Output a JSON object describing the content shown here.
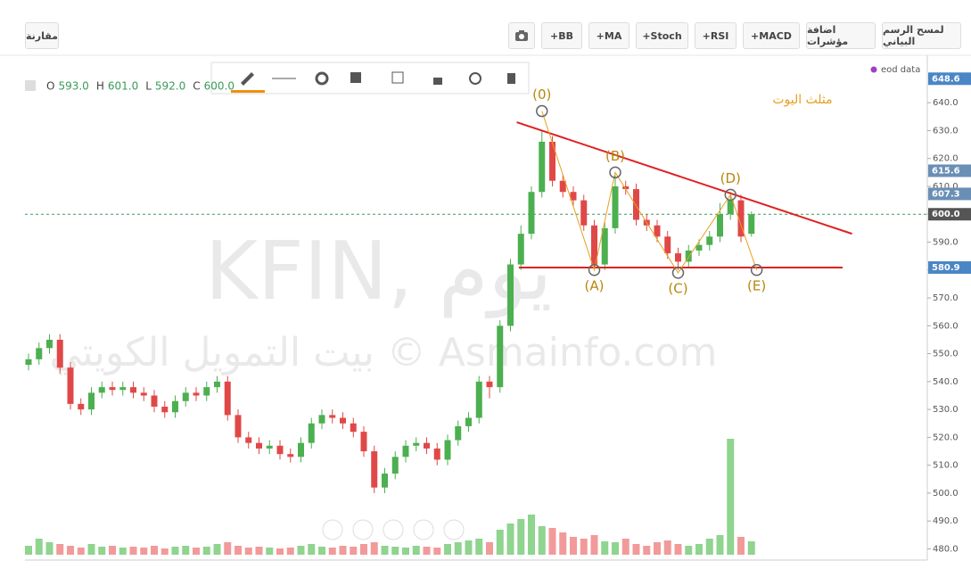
{
  "toolbar": {
    "compare": "مقارنة",
    "buttons": [
      "+BB",
      "+MA",
      "+Stoch",
      "+RSI",
      "+MACD",
      "اضافة مؤشرات",
      "لمسح الرسم البياني"
    ]
  },
  "legend_ohlc": [
    {
      "key": "O",
      "value": "593.0"
    },
    {
      "key": "H",
      "value": "601.0"
    },
    {
      "key": "L",
      "value": "592.0"
    },
    {
      "key": "C",
      "value": "600.0"
    }
  ],
  "watermark": [
    "KFIN, يوم",
    "بيت التمويل الكويتي © Asmainfo.com"
  ],
  "source": "eod data",
  "chart_data": {
    "type": "candlestick",
    "title": "مثلث اليوت",
    "open": [
      546,
      548,
      552,
      555,
      545,
      532,
      530,
      536,
      538,
      537,
      538,
      536,
      535,
      531,
      529,
      533,
      536,
      535,
      538,
      540,
      528,
      520,
      518,
      516,
      517,
      514,
      513,
      518,
      525,
      528,
      527,
      525,
      522,
      515,
      502,
      507,
      513,
      517,
      518,
      516,
      512,
      519,
      524,
      527,
      540,
      538,
      560,
      582,
      593,
      608,
      626,
      612,
      608,
      605,
      596,
      582,
      595,
      610,
      609,
      598,
      596,
      592,
      586,
      583,
      587,
      589,
      592,
      600,
      605,
      593
    ],
    "high": [
      550,
      554,
      557,
      557,
      547,
      534,
      538,
      540,
      540,
      540,
      540,
      538,
      537,
      533,
      535,
      538,
      538,
      540,
      542,
      542,
      530,
      522,
      520,
      519,
      519,
      516,
      520,
      527,
      530,
      530,
      529,
      527,
      524,
      517,
      509,
      515,
      519,
      520,
      520,
      518,
      521,
      526,
      529,
      542,
      542,
      562,
      584,
      596,
      610,
      630,
      628,
      614,
      610,
      607,
      598,
      597,
      614,
      612,
      611,
      600,
      598,
      594,
      588,
      589,
      591,
      594,
      604,
      608,
      607,
      601
    ],
    "low": [
      544,
      546,
      550,
      543,
      530,
      528,
      528,
      534,
      535,
      535,
      534,
      533,
      529,
      527,
      527,
      531,
      533,
      533,
      536,
      526,
      518,
      516,
      514,
      514,
      512,
      511,
      511,
      516,
      523,
      525,
      523,
      520,
      513,
      500,
      500,
      505,
      511,
      515,
      514,
      510,
      510,
      517,
      522,
      525,
      534,
      536,
      558,
      580,
      591,
      606,
      610,
      606,
      603,
      594,
      580,
      580,
      593,
      607,
      596,
      594,
      590,
      584,
      580,
      581,
      585,
      587,
      590,
      598,
      590,
      592
    ],
    "close": [
      548,
      552,
      555,
      545,
      532,
      530,
      536,
      538,
      537,
      538,
      536,
      535,
      531,
      529,
      533,
      536,
      535,
      538,
      540,
      528,
      520,
      518,
      516,
      517,
      514,
      513,
      518,
      525,
      528,
      527,
      525,
      522,
      515,
      502,
      507,
      513,
      517,
      518,
      516,
      512,
      519,
      524,
      527,
      540,
      538,
      560,
      582,
      593,
      608,
      626,
      612,
      608,
      605,
      596,
      582,
      595,
      610,
      609,
      598,
      596,
      592,
      586,
      583,
      587,
      589,
      592,
      600,
      605,
      592,
      600
    ],
    "volume": [
      10,
      18,
      14,
      12,
      10,
      8,
      12,
      9,
      10,
      8,
      9,
      8,
      10,
      7,
      9,
      10,
      8,
      9,
      12,
      14,
      10,
      8,
      9,
      8,
      7,
      8,
      10,
      12,
      9,
      8,
      10,
      9,
      12,
      14,
      10,
      9,
      8,
      10,
      9,
      8,
      12,
      14,
      16,
      18,
      14,
      28,
      35,
      40,
      45,
      32,
      30,
      25,
      20,
      18,
      22,
      15,
      14,
      18,
      12,
      10,
      14,
      16,
      12,
      10,
      12,
      18,
      22,
      130,
      20,
      15
    ],
    "up_color": "#4caf50",
    "down_color": "#e04848",
    "volume_up_color": "#8fd48f",
    "volume_down_color": "#f29a9a",
    "ylim": [
      476,
      657
    ],
    "yticks": [
      {
        "value": 480,
        "label": "480.0"
      },
      {
        "value": 490,
        "label": "490.0"
      },
      {
        "value": 500,
        "label": "500.0"
      },
      {
        "value": 510,
        "label": "510.0"
      },
      {
        "value": 520,
        "label": "520.0"
      },
      {
        "value": 530,
        "label": "530.0"
      },
      {
        "value": 540,
        "label": "540.0"
      },
      {
        "value": 550,
        "label": "550.0"
      },
      {
        "value": 560,
        "label": "560.0"
      },
      {
        "value": 570,
        "label": "570.0"
      },
      {
        "value": 580,
        "label": "580.0"
      },
      {
        "value": 590,
        "label": "590.0"
      },
      {
        "value": 600,
        "label": "600.0"
      },
      {
        "value": 610,
        "label": "610.0"
      },
      {
        "value": 620,
        "label": "620.0"
      },
      {
        "value": 630,
        "label": "630.0"
      },
      {
        "value": 640,
        "label": "640.0"
      }
    ],
    "price_labels": [
      {
        "value": 648.6,
        "label": "648.6",
        "color": "#4a86c5"
      },
      {
        "value": 615.6,
        "label": "615.6",
        "color": "#6a8fb5"
      },
      {
        "value": 607.3,
        "label": "607.3",
        "color": "#6a8fb5"
      },
      {
        "value": 600,
        "label": "600.0",
        "color": "#555555"
      },
      {
        "value": 580.9,
        "label": "580.9",
        "color": "#4a86c5"
      }
    ],
    "last_price": 600,
    "last_price_color": "#3a9a5a",
    "wave_color": "#e8a020",
    "wave_points": [
      {
        "label": "(0)",
        "x": 49,
        "value": 637,
        "pos": "above"
      },
      {
        "label": "(A)",
        "x": 54,
        "value": 580,
        "pos": "below"
      },
      {
        "label": "(B)",
        "x": 56,
        "value": 615,
        "pos": "above"
      },
      {
        "label": "(C)",
        "x": 62,
        "value": 579,
        "pos": "below"
      },
      {
        "label": "(D)",
        "x": 67,
        "value": 607,
        "pos": "above"
      },
      {
        "label": "(E)",
        "x": 69.5,
        "value": 580,
        "pos": "below"
      }
    ],
    "trendlines": [
      {
        "x": [
          46.6,
          78.6
        ],
        "values": [
          633,
          593
        ],
        "color": "#e02020"
      },
      {
        "x": [
          46.8,
          77.7
        ],
        "values": [
          580.9,
          580.9
        ],
        "color": "#e02020"
      }
    ]
  }
}
